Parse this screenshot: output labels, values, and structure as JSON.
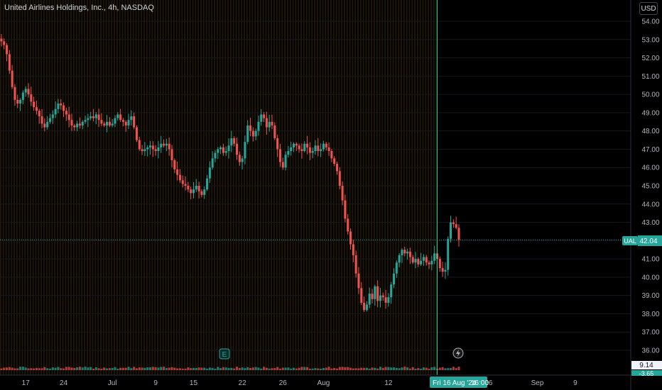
{
  "header": {
    "title": "United Airlines Holdings, Inc., 4h, NASDAQ",
    "currency": "USD"
  },
  "price_label": {
    "symbol": "UAL",
    "value": "42.04"
  },
  "volume_labels": {
    "top": "9.14",
    "bottom": "-3.65"
  },
  "crosshair_date": "Fri 16 Aug '24",
  "crosshair_time": "16:00",
  "markers": {
    "earnings_icon": "E",
    "dividend_icon": "lightning-icon"
  },
  "colors": {
    "up": "#26a69a",
    "down": "#ef5350",
    "crosshair": "#2ad18f",
    "background": "#000000",
    "stripes": "#3a2a10"
  },
  "chart_data": {
    "type": "candlestick",
    "title": "United Airlines Holdings, Inc., 4h, NASDAQ",
    "ylim": [
      35.5,
      54.5
    ],
    "yticks": [
      "54.00",
      "53.00",
      "52.00",
      "51.00",
      "50.00",
      "49.00",
      "48.00",
      "47.00",
      "46.00",
      "45.00",
      "44.00",
      "43.00",
      "42.00",
      "41.00",
      "40.00",
      "39.00",
      "38.00",
      "37.00",
      "36.00"
    ],
    "xticks": [
      {
        "label": "17",
        "slot": 9
      },
      {
        "label": "24",
        "slot": 23
      },
      {
        "label": "Jul",
        "slot": 41
      },
      {
        "label": "9",
        "slot": 57
      },
      {
        "label": "15",
        "slot": 71
      },
      {
        "label": "22",
        "slot": 89
      },
      {
        "label": "26",
        "slot": 104
      },
      {
        "label": "Aug",
        "slot": 119
      },
      {
        "label": "12",
        "slot": 143
      },
      {
        "label": "26",
        "slot": 180
      },
      {
        "label": "Sep",
        "slot": 198
      },
      {
        "label": "9",
        "slot": 212
      }
    ],
    "total_slots": 233,
    "crosshair_slot": 161,
    "last_price": 42.04,
    "closes": [
      52.9,
      52.7,
      52.2,
      51.3,
      50.4,
      49.7,
      49.5,
      49.7,
      50.1,
      50.3,
      50.0,
      49.6,
      49.3,
      49.1,
      48.8,
      48.4,
      48.2,
      48.5,
      48.7,
      48.9,
      49.2,
      49.5,
      49.4,
      49.1,
      48.9,
      48.6,
      48.3,
      48.2,
      48.4,
      48.3,
      48.5,
      48.6,
      48.7,
      48.8,
      48.7,
      48.9,
      48.6,
      48.4,
      48.3,
      48.5,
      48.3,
      48.4,
      48.7,
      48.9,
      48.6,
      48.5,
      48.3,
      48.6,
      48.8,
      48.2,
      47.5,
      47.0,
      46.9,
      47.0,
      47.1,
      47.2,
      47.0,
      46.9,
      47.1,
      47.3,
      47.2,
      47.3,
      47.0,
      46.4,
      45.9,
      45.6,
      45.3,
      45.1,
      45.0,
      44.8,
      44.6,
      44.8,
      45.0,
      44.7,
      44.5,
      44.8,
      45.4,
      46.0,
      46.5,
      46.8,
      47.0,
      47.1,
      46.8,
      46.9,
      47.2,
      47.6,
      47.3,
      46.7,
      46.3,
      46.5,
      47.4,
      48.3,
      48.0,
      47.7,
      48.0,
      48.5,
      48.9,
      48.7,
      48.2,
      48.5,
      48.3,
      47.6,
      47.0,
      46.3,
      46.0,
      46.7,
      46.9,
      47.1,
      47.3,
      47.2,
      47.0,
      46.9,
      47.3,
      47.1,
      46.8,
      46.9,
      47.2,
      46.9,
      47.0,
      47.3,
      47.1,
      46.9,
      46.5,
      46.2,
      45.8,
      45.0,
      44.2,
      43.2,
      42.5,
      41.8,
      41.2,
      40.2,
      39.4,
      38.6,
      38.2,
      38.5,
      39.1,
      38.8,
      39.5,
      38.7,
      39.0,
      38.9,
      38.6,
      38.9,
      39.6,
      40.2,
      40.8,
      41.2,
      41.5,
      41.3,
      41.4,
      41.1,
      40.8,
      41.0,
      40.7,
      40.9,
      41.1,
      40.8,
      40.7,
      40.9,
      41.3,
      41.0,
      40.5,
      40.3,
      40.4,
      42.1,
      43.0,
      42.9,
      42.7,
      42.04
    ]
  }
}
